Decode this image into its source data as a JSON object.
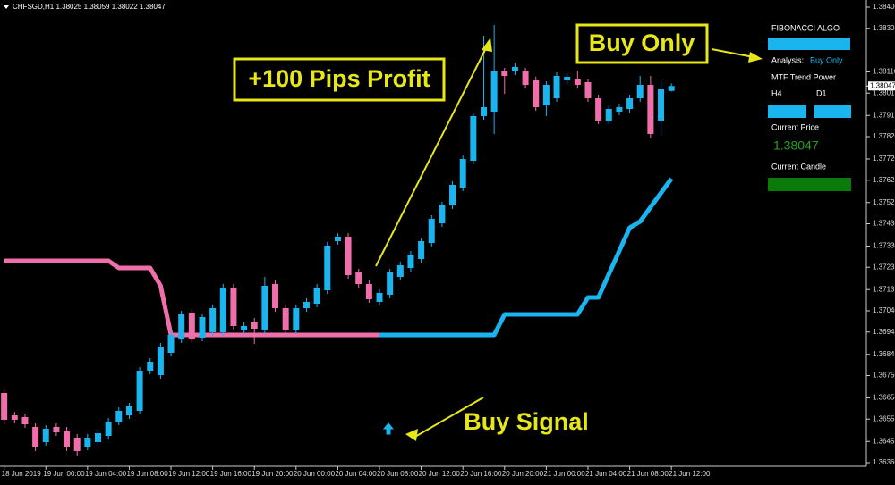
{
  "chart_data": {
    "type": "candlestick",
    "header": "CHFSGD,H1  1.38025 1.38059 1.38022 1.38047",
    "up_color": "#1ab5ef",
    "down_color": "#f06eaa",
    "candles": [
      [
        1.36672,
        1.36688,
        1.36532,
        1.36552
      ],
      [
        1.36572,
        1.36588,
        1.36536,
        1.36552
      ],
      [
        1.36564,
        1.3658,
        1.36516,
        1.36532
      ],
      [
        1.3652,
        1.36536,
        1.36412,
        1.36432
      ],
      [
        1.36452,
        1.36528,
        1.36436,
        1.36512
      ],
      [
        1.3652,
        1.36536,
        1.3648,
        1.36496
      ],
      [
        1.36504,
        1.3652,
        1.36412,
        1.36432
      ],
      [
        1.36472,
        1.36488,
        1.36392,
        1.36412
      ],
      [
        1.36432,
        1.36488,
        1.36416,
        1.36472
      ],
      [
        1.36452,
        1.36508,
        1.36436,
        1.36492
      ],
      [
        1.3648,
        1.3656,
        1.36464,
        1.36544
      ],
      [
        1.36544,
        1.36608,
        1.36528,
        1.36592
      ],
      [
        1.36572,
        1.36628,
        1.36556,
        1.36612
      ],
      [
        1.36592,
        1.36788,
        1.36576,
        1.36772
      ],
      [
        1.36772,
        1.36828,
        1.36756,
        1.36812
      ],
      [
        1.36752,
        1.36896,
        1.36736,
        1.3688
      ],
      [
        1.36852,
        1.36948,
        1.36836,
        1.36932
      ],
      [
        1.36912,
        1.3704,
        1.36896,
        1.37024
      ],
      [
        1.37032,
        1.37048,
        1.36896,
        1.36912
      ],
      [
        1.3692,
        1.37028,
        1.36904,
        1.37012
      ],
      [
        1.36944,
        1.37068,
        1.36928,
        1.37052
      ],
      [
        1.36944,
        1.3716,
        1.36928,
        1.37144
      ],
      [
        1.37144,
        1.3716,
        1.36956,
        1.36972
      ],
      [
        1.36952,
        1.36988,
        1.36936,
        1.36972
      ],
      [
        1.36992,
        1.37008,
        1.36892,
        1.3696
      ],
      [
        1.36952,
        1.37192,
        1.36936,
        1.37152
      ],
      [
        1.3716,
        1.37176,
        1.37036,
        1.37052
      ],
      [
        1.37052,
        1.37068,
        1.36936,
        1.36952
      ],
      [
        1.36952,
        1.37068,
        1.36936,
        1.37052
      ],
      [
        1.37052,
        1.37096,
        1.37036,
        1.3708
      ],
      [
        1.37072,
        1.3716,
        1.37056,
        1.37144
      ],
      [
        1.37132,
        1.37348,
        1.37116,
        1.37332
      ],
      [
        1.37352,
        1.37388,
        1.37336,
        1.37372
      ],
      [
        1.37372,
        1.37388,
        1.37184,
        1.372
      ],
      [
        1.37212,
        1.37228,
        1.37144,
        1.3716
      ],
      [
        1.3716,
        1.37176,
        1.37076,
        1.37092
      ],
      [
        1.3708,
        1.37136,
        1.37064,
        1.3712
      ],
      [
        1.37112,
        1.37228,
        1.37096,
        1.37212
      ],
      [
        1.37192,
        1.3726,
        1.37176,
        1.37244
      ],
      [
        1.37232,
        1.37308,
        1.37216,
        1.37292
      ],
      [
        1.37272,
        1.37368,
        1.37256,
        1.37352
      ],
      [
        1.37344,
        1.37468,
        1.37328,
        1.37452
      ],
      [
        1.37432,
        1.37528,
        1.37416,
        1.37512
      ],
      [
        1.37512,
        1.3762,
        1.37496,
        1.37604
      ],
      [
        1.37592,
        1.37736,
        1.37576,
        1.3772
      ],
      [
        1.37712,
        1.37928,
        1.37696,
        1.37912
      ],
      [
        1.37912,
        1.38272,
        1.37896,
        1.37952
      ],
      [
        1.37932,
        1.3832,
        1.37832,
        1.38112
      ],
      [
        1.38112,
        1.38128,
        1.38012,
        1.38092
      ],
      [
        1.38112,
        1.38148,
        1.38096,
        1.38132
      ],
      [
        1.38112,
        1.38128,
        1.38036,
        1.38052
      ],
      [
        1.38072,
        1.38088,
        1.37936,
        1.37952
      ],
      [
        1.3796,
        1.38068,
        1.37912,
        1.38052
      ],
      [
        1.37992,
        1.38108,
        1.37976,
        1.38092
      ],
      [
        1.38072,
        1.38104,
        1.38056,
        1.38088
      ],
      [
        1.3808,
        1.38112,
        1.38036,
        1.38052
      ],
      [
        1.38064,
        1.3808,
        1.37976,
        1.37992
      ],
      [
        1.37992,
        1.38008,
        1.37876,
        1.37892
      ],
      [
        1.37892,
        1.3796,
        1.37876,
        1.37944
      ],
      [
        1.37932,
        1.37968,
        1.37916,
        1.37952
      ],
      [
        1.37944,
        1.38008,
        1.37928,
        1.37992
      ],
      [
        1.37992,
        1.38092,
        1.37976,
        1.38052
      ],
      [
        1.38052,
        1.38092,
        1.37812,
        1.37832
      ],
      [
        1.37892,
        1.38072,
        1.37824,
        1.38032
      ],
      [
        1.38025,
        1.38059,
        1.38022,
        1.38047
      ]
    ],
    "xlim": [
      -0.4,
      82.7
    ],
    "ylim": [
      1.36344,
      1.38432
    ],
    "yticks": [
      {
        "value": 1.384,
        "label": "1.38400"
      },
      {
        "value": 1.38305,
        "label": "1.38305"
      },
      {
        "value": 1.3811,
        "label": "1.38110"
      },
      {
        "value": 1.38015,
        "label": "1.38015"
      },
      {
        "value": 1.37915,
        "label": "1.37915"
      },
      {
        "value": 1.3782,
        "label": "1.37820"
      },
      {
        "value": 1.3772,
        "label": "1.37720"
      },
      {
        "value": 1.37625,
        "label": "1.37625"
      },
      {
        "value": 1.37525,
        "label": "1.37525"
      },
      {
        "value": 1.3743,
        "label": "1.37430"
      },
      {
        "value": 1.3733,
        "label": "1.37330"
      },
      {
        "value": 1.37235,
        "label": "1.37235"
      },
      {
        "value": 1.37135,
        "label": "1.37135"
      },
      {
        "value": 1.3704,
        "label": "1.37040"
      },
      {
        "value": 1.36945,
        "label": "1.36945"
      },
      {
        "value": 1.36845,
        "label": "1.36845"
      },
      {
        "value": 1.3675,
        "label": "1.36750"
      },
      {
        "value": 1.3665,
        "label": "1.36650"
      },
      {
        "value": 1.36555,
        "label": "1.36555"
      },
      {
        "value": 1.36455,
        "label": "1.36455"
      },
      {
        "value": 1.3636,
        "label": "1.36360"
      }
    ],
    "xticks": [
      {
        "value": 0,
        "label": "18 Jun 2019"
      },
      {
        "value": 4,
        "label": "19 Jun 00:00"
      },
      {
        "value": 8,
        "label": "19 Jun 04:00"
      },
      {
        "value": 12,
        "label": "19 Jun 08:00"
      },
      {
        "value": 16,
        "label": "19 Jun 12:00"
      },
      {
        "value": 20,
        "label": "19 Jun 16:00"
      },
      {
        "value": 24,
        "label": "19 Jun 20:00"
      },
      {
        "value": 28,
        "label": "20 Jun 00:00"
      },
      {
        "value": 32,
        "label": "20 Jun 04:00"
      },
      {
        "value": 36,
        "label": "20 Jun 08:00"
      },
      {
        "value": 40,
        "label": "20 Jun 12:00"
      },
      {
        "value": 44,
        "label": "20 Jun 16:00"
      },
      {
        "value": 48,
        "label": "20 Jun 20:00"
      },
      {
        "value": 52,
        "label": "21 Jun 00:00"
      },
      {
        "value": 56,
        "label": "21 Jun 04:00"
      },
      {
        "value": 60,
        "label": "21 Jun 08:00"
      },
      {
        "value": 64,
        "label": "21 Jun 12:00"
      }
    ],
    "current_price": {
      "value": 1.38047,
      "label": "1.38047"
    },
    "trend": [
      {
        "color": "#f06eaa",
        "x": [
          0,
          10,
          11,
          14,
          15,
          16,
          36
        ],
        "values": [
          1.37264,
          1.37264,
          1.37232,
          1.37232,
          1.37152,
          1.36932,
          1.36932
        ]
      },
      {
        "color": "#1ab5ef",
        "x": [
          36,
          47,
          48,
          55,
          56,
          57,
          60,
          61,
          62,
          64
        ],
        "values": [
          1.36932,
          1.36932,
          1.37024,
          1.37024,
          1.371,
          1.371,
          1.37412,
          1.3744,
          1.37504,
          1.37632
        ]
      }
    ],
    "annotations": [
      "+100 Pips Profit",
      "Buy Only",
      "Buy Signal"
    ]
  },
  "panel": {
    "title": "FIBONACCI ALGO",
    "analysis_label": "Analysis:",
    "analysis_value": "Buy Only",
    "mtf": "MTF Trend Power",
    "h4": "H4",
    "d1": "D1",
    "current_price_label": "Current Price",
    "current_candle_label": "Current Candle"
  }
}
